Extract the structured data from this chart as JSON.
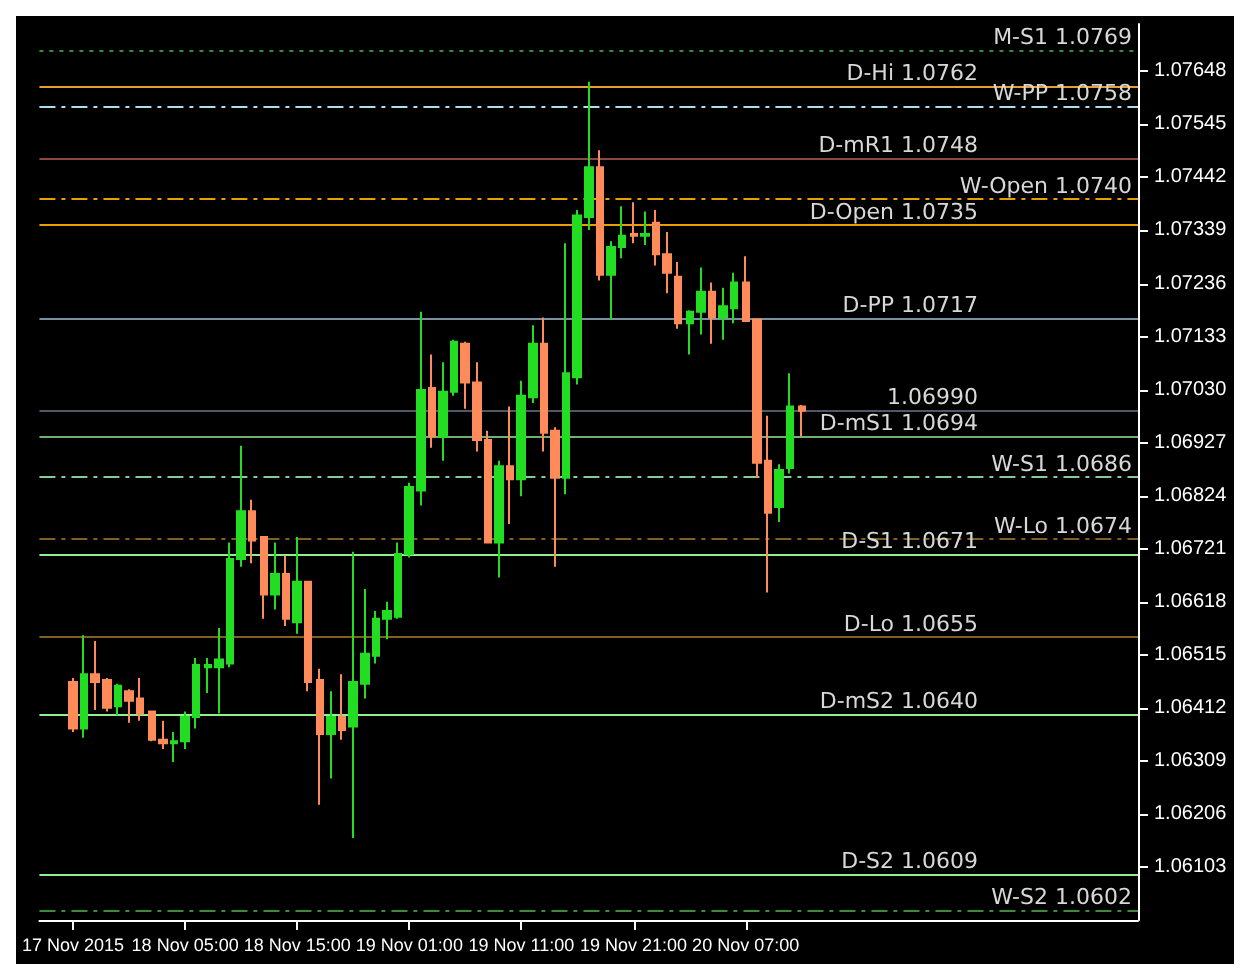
{
  "chart_data": {
    "type": "candlestick",
    "x": [
      "2015-11-17T19:00",
      "2015-11-17T20:00",
      "2015-11-17T21:00",
      "2015-11-17T22:00",
      "2015-11-17T23:00",
      "2015-11-18T00:00",
      "2015-11-18T01:00",
      "2015-11-18T02:00",
      "2015-11-18T03:00",
      "2015-11-18T04:00",
      "2015-11-18T05:00",
      "2015-11-18T06:00",
      "2015-11-18T07:00",
      "2015-11-18T08:00",
      "2015-11-18T09:00",
      "2015-11-18T10:00",
      "2015-11-18T11:00",
      "2015-11-18T12:00",
      "2015-11-18T13:00",
      "2015-11-18T14:00",
      "2015-11-18T15:00",
      "2015-11-18T16:00",
      "2015-11-18T17:00",
      "2015-11-18T18:00",
      "2015-11-18T19:00",
      "2015-11-18T20:00",
      "2015-11-18T21:00",
      "2015-11-18T22:00",
      "2015-11-18T23:00",
      "2015-11-19T00:00",
      "2015-11-19T01:00",
      "2015-11-19T02:00",
      "2015-11-19T03:00",
      "2015-11-19T04:00",
      "2015-11-19T05:00",
      "2015-11-19T06:00",
      "2015-11-19T07:00",
      "2015-11-19T08:00",
      "2015-11-19T09:00",
      "2015-11-19T10:00",
      "2015-11-19T11:00",
      "2015-11-19T12:00",
      "2015-11-19T13:00",
      "2015-11-19T14:00",
      "2015-11-19T15:00",
      "2015-11-19T16:00",
      "2015-11-19T17:00",
      "2015-11-19T18:00",
      "2015-11-19T19:00",
      "2015-11-19T20:00",
      "2015-11-19T21:00",
      "2015-11-19T22:00",
      "2015-11-19T23:00",
      "2015-11-20T00:00",
      "2015-11-20T01:00",
      "2015-11-20T02:00",
      "2015-11-20T03:00",
      "2015-11-20T04:00",
      "2015-11-20T05:00",
      "2015-11-20T06:00",
      "2015-11-20T07:00",
      "2015-11-20T08:00",
      "2015-11-20T09:00",
      "2015-11-20T10:00",
      "2015-11-20T11:00",
      "2015-11-20T12:00"
    ],
    "ohlc": [
      [
        1.06462,
        1.0647,
        1.06365,
        1.06372
      ],
      [
        1.06372,
        1.06553,
        1.06354,
        1.06477
      ],
      [
        1.06477,
        1.06542,
        1.06408,
        1.06462
      ],
      [
        1.06466,
        1.0647,
        1.06405,
        1.06412
      ],
      [
        1.06415,
        1.06459,
        1.06397,
        1.06455
      ],
      [
        1.06444,
        1.06448,
        1.06383,
        1.06426
      ],
      [
        1.0643,
        1.0647,
        1.06387,
        1.06401
      ],
      [
        1.06405,
        1.06405,
        1.06347,
        1.0635
      ],
      [
        1.0635,
        1.06387,
        1.06332,
        1.06343
      ],
      [
        1.06343,
        1.06365,
        1.06307,
        1.06347
      ],
      [
        1.06347,
        1.06405,
        1.06332,
        1.06394
      ],
      [
        1.06394,
        1.06509,
        1.06372,
        1.06495
      ],
      [
        1.06491,
        1.06509,
        1.06441,
        1.06495
      ],
      [
        1.06491,
        1.06567,
        1.06401,
        1.06506
      ],
      [
        1.06498,
        1.06733,
        1.06491,
        1.06701
      ],
      [
        1.06701,
        1.06921,
        1.06686,
        1.06794
      ],
      [
        1.06794,
        1.06816,
        1.06693,
        1.06737
      ],
      [
        1.06744,
        1.06744,
        1.06585,
        1.06632
      ],
      [
        1.06632,
        1.06733,
        1.06603,
        1.06672
      ],
      [
        1.06672,
        1.06708,
        1.06571,
        1.06585
      ],
      [
        1.06578,
        1.06744,
        1.06556,
        1.06657
      ],
      [
        1.06657,
        1.06657,
        1.06444,
        1.06462
      ],
      [
        1.06466,
        1.06488,
        1.06224,
        1.06361
      ],
      [
        1.06361,
        1.06444,
        1.06275,
        1.06394
      ],
      [
        1.06394,
        1.06477,
        1.0635,
        1.06369
      ],
      [
        1.06376,
        1.06715,
        1.06159,
        1.06462
      ],
      [
        1.06459,
        1.06643,
        1.0643,
        1.06517
      ],
      [
        1.06513,
        1.066,
        1.06498,
        1.06585
      ],
      [
        1.06585,
        1.06618,
        1.06545,
        1.066
      ],
      [
        1.06589,
        1.06733,
        1.06585,
        1.06711
      ],
      [
        1.06711,
        1.06849,
        1.06704,
        1.06841
      ],
      [
        1.06834,
        1.07181,
        1.06805,
        1.07029
      ],
      [
        1.07033,
        1.07098,
        1.06917,
        1.06939
      ],
      [
        1.06939,
        1.07083,
        1.06892,
        1.07026
      ],
      [
        1.07026,
        1.07127,
        1.07018,
        1.07123
      ],
      [
        1.07119,
        1.07123,
        1.06993,
        1.07044
      ],
      [
        1.07044,
        1.07083,
        1.0691,
        1.06932
      ],
      [
        1.06932,
        1.0695,
        1.06733,
        1.06733
      ],
      [
        1.06733,
        1.06892,
        1.06665,
        1.06881
      ],
      [
        1.06881,
        1.06997,
        1.06769,
        1.06856
      ],
      [
        1.06856,
        1.07047,
        1.06823,
        1.07018
      ],
      [
        1.07015,
        1.07155,
        1.07004,
        1.07119
      ],
      [
        1.07119,
        1.0717,
        1.0691,
        1.06946
      ],
      [
        1.0695,
        1.06957,
        1.06686,
        1.06859
      ],
      [
        1.06859,
        1.07314,
        1.06827,
        1.07062
      ],
      [
        1.07054,
        1.07379,
        1.0704,
        1.07368
      ],
      [
        1.07365,
        1.07628,
        1.0734,
        1.07462
      ],
      [
        1.07462,
        1.07495,
        1.07242,
        1.07253
      ],
      [
        1.07253,
        1.07318,
        1.07166,
        1.07307
      ],
      [
        1.07307,
        1.07386,
        1.07285,
        1.07329
      ],
      [
        1.07332,
        1.07394,
        1.07314,
        1.07329
      ],
      [
        1.07329,
        1.07376,
        1.07311,
        1.07332
      ],
      [
        1.07354,
        1.07379,
        1.07271,
        1.07293
      ],
      [
        1.07293,
        1.07336,
        1.07217,
        1.07257
      ],
      [
        1.07249,
        1.07278,
        1.07148,
        1.07159
      ],
      [
        1.07159,
        1.07184,
        1.07098,
        1.07181
      ],
      [
        1.07181,
        1.07267,
        1.07137,
        1.0722
      ],
      [
        1.0722,
        1.07238,
        1.07119,
        1.0717
      ],
      [
        1.0717,
        1.07228,
        1.07127,
        1.07192
      ],
      [
        1.07188,
        1.07257,
        1.07159,
        1.07238
      ],
      [
        1.07238,
        1.07289,
        1.07163,
        1.07163
      ],
      [
        1.07166,
        1.07166,
        1.06859,
        1.06888
      ],
      [
        1.06892,
        1.06979,
        1.06636,
        1.06791
      ],
      [
        1.06802,
        1.06885,
        1.06773,
        1.06874
      ],
      [
        1.06878,
        1.07062,
        1.06867,
        1.06997
      ],
      [
        1.06997,
        1.07,
        1.06939,
        1.06989
      ]
    ],
    "xlim": [
      "2015-11-17T16:00",
      "2015-11-21T18:00"
    ],
    "xticks": [
      {
        "value": "2015-11-17T19:00",
        "label": "17 Nov 2015"
      },
      {
        "value": "2015-11-18T05:00",
        "label": "18 Nov 05:00"
      },
      {
        "value": "2015-11-18T15:00",
        "label": "18 Nov 15:00"
      },
      {
        "value": "2015-11-19T01:00",
        "label": "19 Nov 01:00"
      },
      {
        "value": "2015-11-19T11:00",
        "label": "19 Nov 11:00"
      },
      {
        "value": "2015-11-19T21:00",
        "label": "19 Nov 21:00"
      },
      {
        "value": "2015-11-20T07:00",
        "label": "20 Nov 07:00"
      }
    ],
    "ylim": [
      1.06,
      1.0774
    ],
    "yticks": [
      1.06103,
      1.06206,
      1.06309,
      1.06412,
      1.06515,
      1.06618,
      1.06721,
      1.06824,
      1.06927,
      {
        "value": 1.0703,
        "label": "1.07030"
      },
      1.07133,
      1.07236,
      1.07339,
      1.07442,
      1.07545,
      1.07648
    ],
    "ref_lines": [
      {
        "axis": "y",
        "value": 1.0769,
        "label": "M-S1 1.0769",
        "color": "#3c8a3c",
        "line_style": "dotted"
      },
      {
        "axis": "y",
        "value": 1.0762,
        "label": "D-Hi 1.0762",
        "color": "#e8a030",
        "line_style": "solid"
      },
      {
        "axis": "y",
        "value": 1.0758,
        "label": "W-PP 1.0758",
        "color": "#a8e0f0",
        "line_style": "dashed"
      },
      {
        "axis": "y",
        "value": 1.0748,
        "label": "D-mR1 1.0748",
        "color": "#8a4a40",
        "line_style": "solid"
      },
      {
        "axis": "y",
        "value": 1.074,
        "label": "W-Open 1.0740",
        "color": "#e8a000",
        "line_style": "dashed"
      },
      {
        "axis": "y",
        "value": 1.0735,
        "label": "D-Open 1.0735",
        "color": "#e8a000",
        "line_style": "solid"
      },
      {
        "axis": "y",
        "value": 1.0717,
        "label": "D-PP 1.0717",
        "color": "#7890a0",
        "line_style": "solid"
      },
      {
        "axis": "y",
        "value": 1.0699,
        "label": "1.06990",
        "color": "#505868",
        "line_style": "solid"
      },
      {
        "axis": "y",
        "value": 1.0694,
        "label": "D-mS1 1.0694",
        "color": "#70b070",
        "line_style": "solid"
      },
      {
        "axis": "y",
        "value": 1.0686,
        "label": "W-S1 1.0686",
        "color": "#80d090",
        "line_style": "dashed"
      },
      {
        "axis": "y",
        "value": 1.0674,
        "label": "W-Lo 1.0674",
        "color": "#806020",
        "line_style": "dashed"
      },
      {
        "axis": "y",
        "value": 1.0671,
        "label": "D-S1 1.0671",
        "color": "#90f090",
        "line_style": "solid"
      },
      {
        "axis": "y",
        "value": 1.0655,
        "label": "D-Lo 1.0655",
        "color": "#806020",
        "line_style": "solid"
      },
      {
        "axis": "y",
        "value": 1.064,
        "label": "D-mS2 1.0640",
        "color": "#90f090",
        "line_style": "solid"
      },
      {
        "axis": "y",
        "value": 1.0609,
        "label": "D-S2 1.0609",
        "color": "#90f090",
        "line_style": "solid"
      },
      {
        "axis": "y",
        "value": 1.0602,
        "label": "W-S2 1.0602",
        "color": "#3c8a3c",
        "line_style": "dashed"
      }
    ],
    "grid": false
  }
}
